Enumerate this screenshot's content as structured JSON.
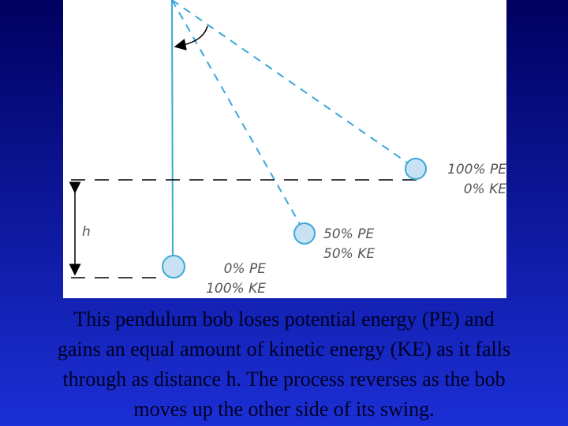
{
  "diagram": {
    "height_label": "h",
    "bobs": [
      {
        "pe_label": "100% PE",
        "ke_label": "0% KE"
      },
      {
        "pe_label": "50% PE",
        "ke_label": "50% KE"
      },
      {
        "pe_label": "0% PE",
        "ke_label": "100% KE"
      }
    ]
  },
  "caption": {
    "lines": [
      "This pendulum bob loses potential energy (PE) and",
      "gains an equal amount of kinetic energy (KE) as it falls",
      "through as distance h. The process reverses as the bob",
      "moves up the other side of its swing."
    ]
  }
}
